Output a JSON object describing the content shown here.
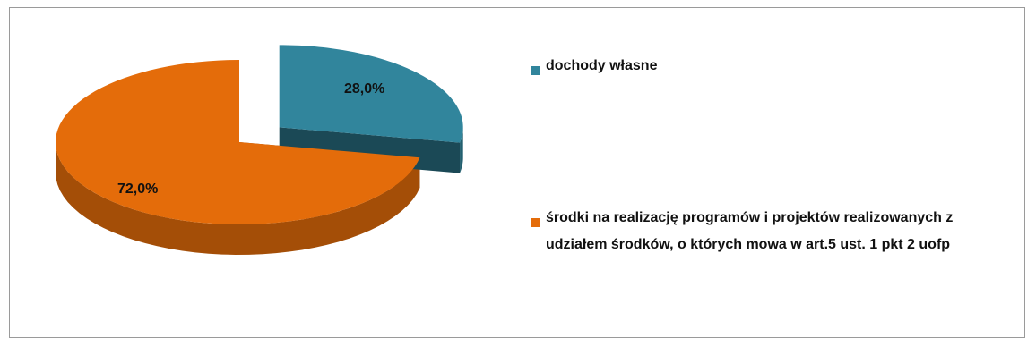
{
  "chart_data": {
    "type": "pie",
    "style": "3d-exploded",
    "series": [
      {
        "name": "",
        "slices": [
          {
            "label": "dochody własne",
            "value": 28.0,
            "display": "28,0%",
            "color": "#31859c"
          },
          {
            "label": "środki na realizację programów i projektów realizowanych z udziałem środków, o których mowa w art.5 ust. 1 pkt 2 uofp",
            "value": 72.0,
            "display": "72,0%",
            "color": "#e46c0a"
          }
        ]
      }
    ],
    "legend": {
      "position": "right",
      "entries": [
        "dochody własne",
        "środki na realizację programów i projektów realizowanych z udziałem środków, o których mowa w art.5 ust. 1 pkt 2 uofp"
      ]
    }
  }
}
